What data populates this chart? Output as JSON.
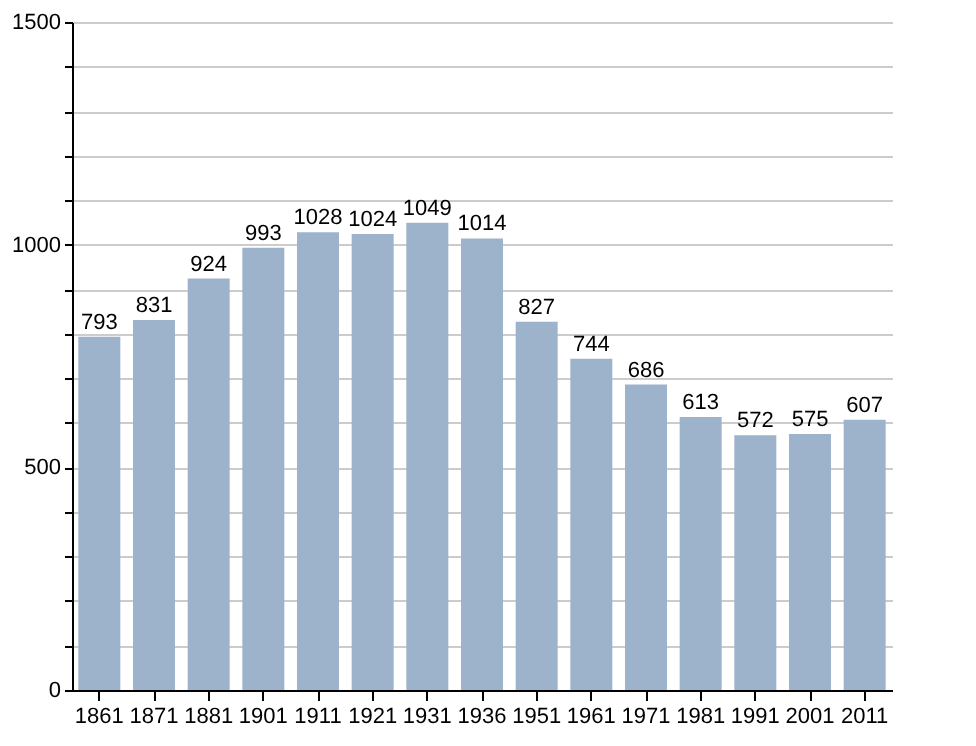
{
  "chart_data": {
    "type": "bar",
    "categories": [
      "1861",
      "1871",
      "1881",
      "1901",
      "1911",
      "1921",
      "1931",
      "1936",
      "1951",
      "1961",
      "1971",
      "1981",
      "1991",
      "2001",
      "2011"
    ],
    "values": [
      793,
      831,
      924,
      993,
      1028,
      1024,
      1049,
      1014,
      827,
      744,
      686,
      613,
      572,
      575,
      607
    ],
    "color": "#9db3cc",
    "ylim": [
      0,
      1500
    ],
    "yticks": [
      0,
      {
        "value": 100,
        "label": null
      },
      {
        "value": 200,
        "label": null
      },
      {
        "value": 300,
        "label": null
      },
      {
        "value": 400,
        "label": null
      },
      500,
      {
        "value": 600,
        "label": null
      },
      {
        "value": 700,
        "label": null
      },
      {
        "value": 800,
        "label": null
      },
      {
        "value": 900,
        "label": null
      },
      1000,
      {
        "value": 1100,
        "label": null
      },
      {
        "value": 1200,
        "label": null
      },
      {
        "value": 1300,
        "label": null
      },
      {
        "value": 1400,
        "label": null
      },
      1500
    ],
    "grid": "y",
    "data_labels": true
  }
}
